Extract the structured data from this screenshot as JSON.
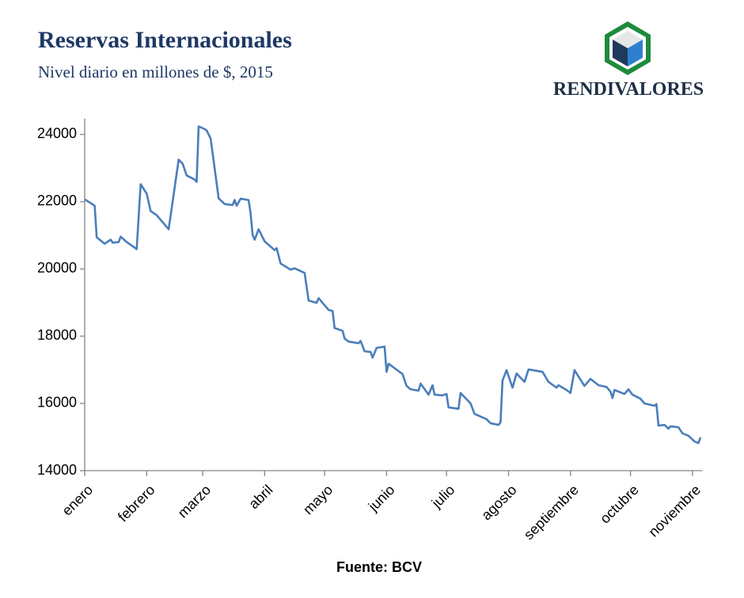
{
  "chart_data": {
    "type": "line",
    "title": "Reservas Internacionales",
    "subtitle": "Nivel diario en millones de $, 2015",
    "brand": "RENDIVALORES",
    "source": "Fuente: BCV",
    "color": "#4a7ebb",
    "x": [
      0,
      5,
      6,
      10,
      13,
      14,
      17,
      18,
      21,
      26,
      28,
      31,
      33,
      36,
      42,
      47,
      49,
      51,
      55,
      56,
      57,
      60,
      61,
      63,
      67,
      70,
      74,
      75,
      76,
      78,
      82,
      83,
      84,
      85,
      87,
      90,
      95,
      96,
      98,
      103,
      105,
      110,
      112,
      116,
      117,
      122,
      124,
      125,
      129,
      130,
      132,
      137,
      138,
      140,
      143,
      144,
      146,
      150,
      151,
      152,
      159,
      161,
      163,
      167,
      168,
      172,
      174,
      175,
      179,
      181,
      182,
      187,
      188,
      193,
      195,
      201,
      203,
      207,
      208,
      209,
      211,
      214,
      216,
      220,
      222,
      229,
      232,
      236,
      237,
      241,
      243,
      245,
      250,
      253,
      257,
      261,
      263,
      264,
      265,
      270,
      272,
      274,
      278,
      280,
      285,
      286,
      287,
      290,
      292,
      293,
      297,
      299,
      302,
      305,
      307,
      308
    ],
    "values": [
      22070,
      21880,
      20940,
      20750,
      20870,
      20780,
      20800,
      20960,
      20800,
      20590,
      22520,
      22240,
      21720,
      21600,
      21180,
      23250,
      23130,
      22780,
      22660,
      22590,
      24240,
      24160,
      24120,
      23880,
      22100,
      21930,
      21900,
      22050,
      21880,
      22090,
      22050,
      21650,
      21010,
      20870,
      21180,
      20820,
      20560,
      20620,
      20160,
      19980,
      20020,
      19880,
      19060,
      18990,
      19130,
      18780,
      18750,
      18240,
      18160,
      17930,
      17840,
      17790,
      17860,
      17550,
      17530,
      17360,
      17650,
      17690,
      16940,
      17180,
      16870,
      16520,
      16420,
      16380,
      16590,
      16260,
      16540,
      16260,
      16240,
      16280,
      15880,
      15840,
      16310,
      16000,
      15690,
      15530,
      15410,
      15360,
      15440,
      16680,
      16990,
      16470,
      16890,
      16640,
      17010,
      16940,
      16640,
      16470,
      16540,
      16400,
      16310,
      16990,
      16520,
      16730,
      16540,
      16490,
      16350,
      16160,
      16400,
      16280,
      16420,
      16260,
      16140,
      16000,
      15930,
      15980,
      15340,
      15360,
      15250,
      15320,
      15290,
      15110,
      15040,
      14870,
      14820,
      14990
    ],
    "xlim": [
      0,
      309
    ],
    "xticks": [
      {
        "value": 0,
        "label": "enero"
      },
      {
        "value": 31,
        "label": "febrero"
      },
      {
        "value": 59,
        "label": "marzo"
      },
      {
        "value": 90,
        "label": "abril"
      },
      {
        "value": 120,
        "label": "mayo"
      },
      {
        "value": 151,
        "label": "junio"
      },
      {
        "value": 181,
        "label": "julio"
      },
      {
        "value": 212,
        "label": "agosto"
      },
      {
        "value": 243,
        "label": "septiembre"
      },
      {
        "value": 273,
        "label": "octubre"
      },
      {
        "value": 304,
        "label": "noviembre"
      }
    ],
    "ylim": [
      14000,
      24470
    ],
    "yticks": [
      14000,
      16000,
      18000,
      20000,
      22000,
      24000
    ],
    "grid": false
  }
}
